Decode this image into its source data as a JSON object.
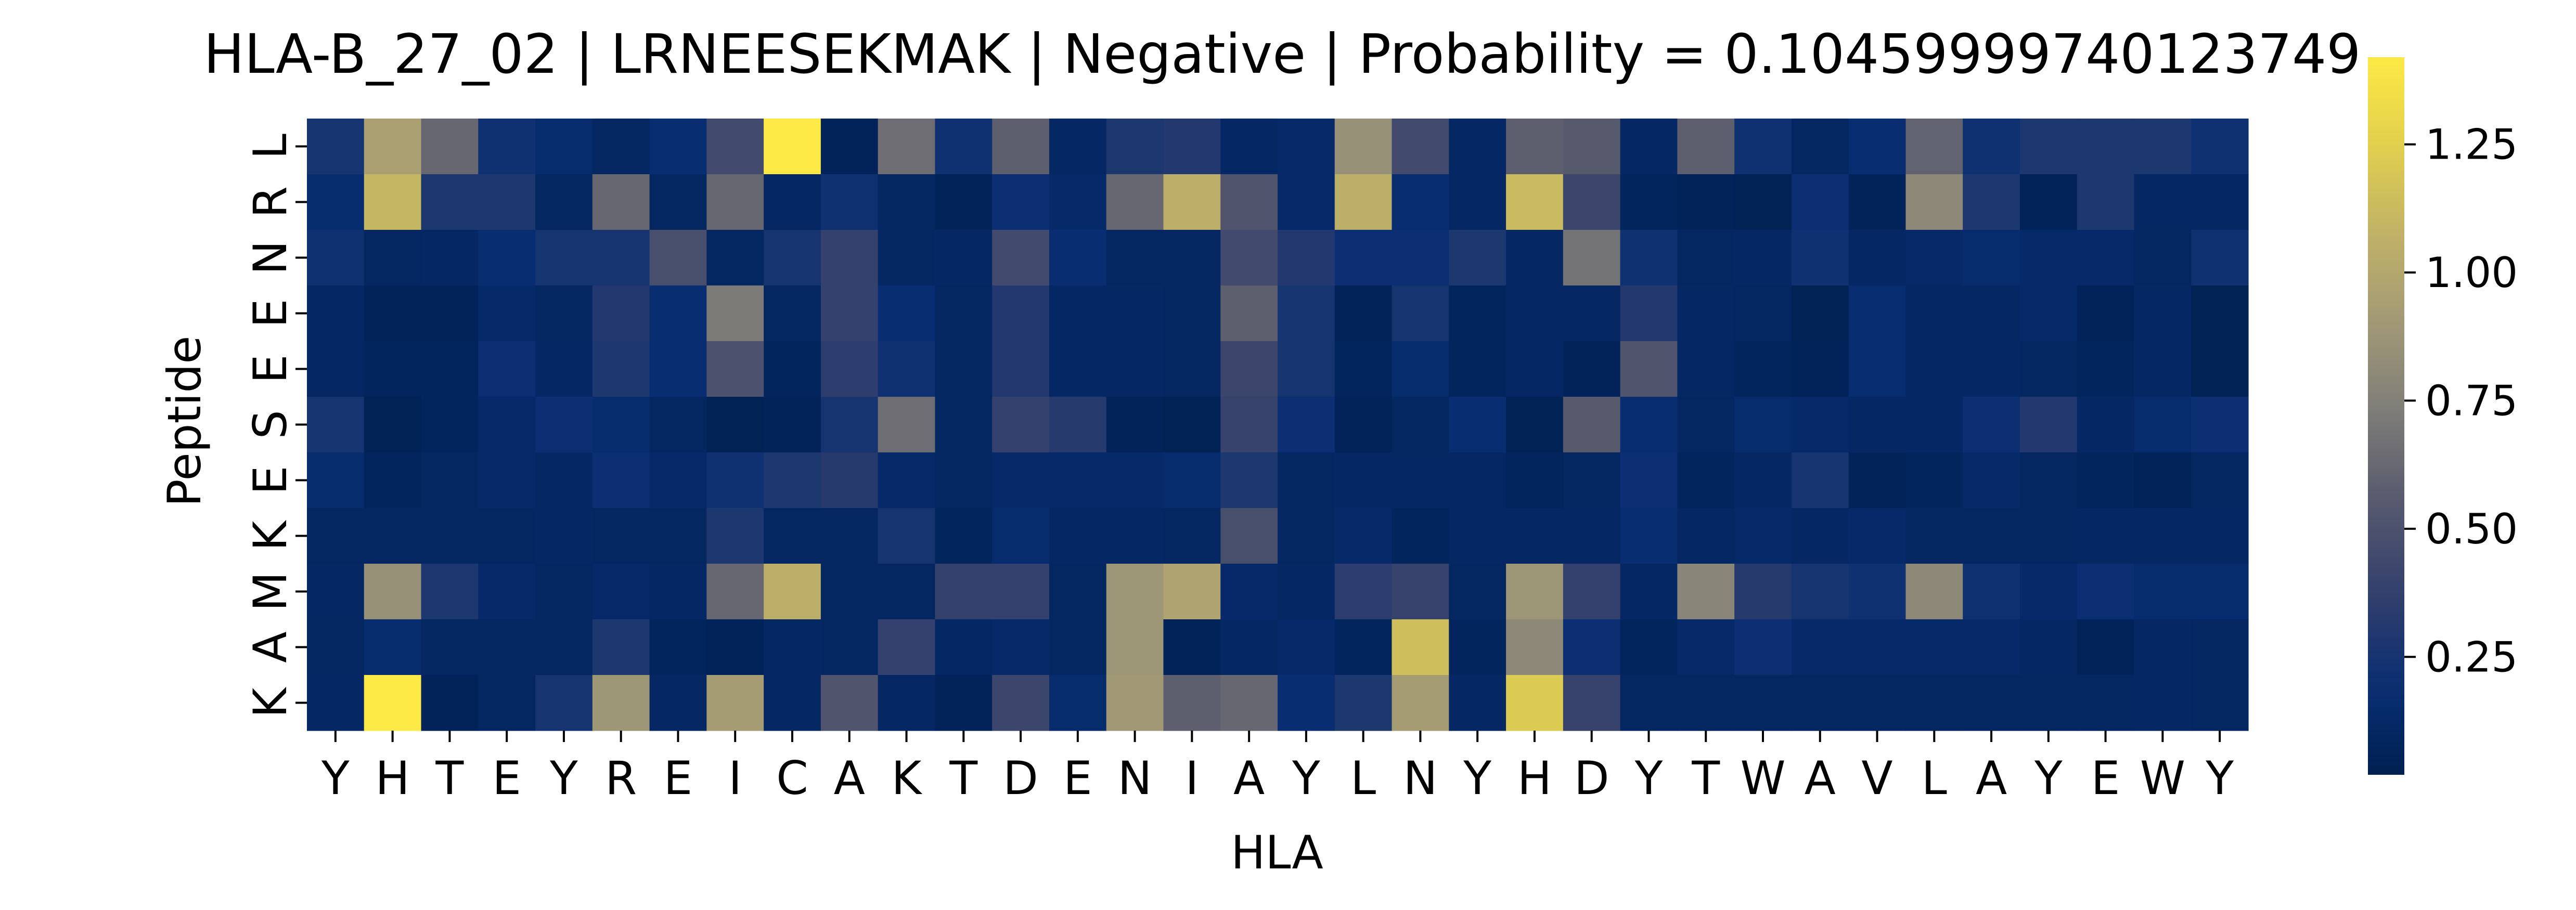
{
  "chart_data": {
    "type": "heatmap",
    "title": "HLA-B_27_02 | LRNEESEKMAK | Negative | Probability = 0.10459999740123749",
    "xlabel": "HLA",
    "ylabel": "Peptide",
    "x_categories": [
      "Y",
      "H",
      "T",
      "E",
      "Y",
      "R",
      "E",
      "I",
      "C",
      "A",
      "K",
      "T",
      "D",
      "E",
      "N",
      "I",
      "A",
      "Y",
      "L",
      "N",
      "Y",
      "H",
      "D",
      "Y",
      "T",
      "W",
      "A",
      "V",
      "L",
      "A",
      "Y",
      "E",
      "W",
      "Y"
    ],
    "y_categories": [
      "L",
      "R",
      "N",
      "E",
      "E",
      "S",
      "E",
      "K",
      "M",
      "A",
      "K"
    ],
    "colormap": "cividis",
    "vmin": 0.02,
    "vmax": 1.42,
    "colorbar_ticks": [
      0.25,
      0.5,
      0.75,
      1.0,
      1.25
    ],
    "colorbar_tick_labels": [
      "0.25",
      "0.50",
      "0.75",
      "1.00",
      "1.25"
    ],
    "values": [
      [
        0.25,
        0.95,
        0.62,
        0.22,
        0.16,
        0.1,
        0.18,
        0.45,
        1.42,
        0.06,
        0.65,
        0.22,
        0.58,
        0.12,
        0.28,
        0.3,
        0.12,
        0.14,
        0.85,
        0.45,
        0.12,
        0.58,
        0.55,
        0.12,
        0.58,
        0.22,
        0.1,
        0.18,
        0.6,
        0.22,
        0.28,
        0.28,
        0.28,
        0.22
      ],
      [
        0.16,
        1.1,
        0.28,
        0.28,
        0.1,
        0.62,
        0.1,
        0.62,
        0.12,
        0.22,
        0.1,
        0.06,
        0.2,
        0.14,
        0.62,
        1.05,
        0.52,
        0.14,
        1.05,
        0.18,
        0.12,
        1.12,
        0.42,
        0.08,
        0.06,
        0.04,
        0.2,
        0.06,
        0.8,
        0.28,
        0.06,
        0.28,
        0.12,
        0.12
      ],
      [
        0.22,
        0.1,
        0.12,
        0.18,
        0.25,
        0.25,
        0.48,
        0.1,
        0.25,
        0.38,
        0.1,
        0.12,
        0.45,
        0.18,
        0.1,
        0.1,
        0.45,
        0.3,
        0.2,
        0.2,
        0.28,
        0.12,
        0.68,
        0.22,
        0.1,
        0.12,
        0.22,
        0.12,
        0.14,
        0.16,
        0.14,
        0.14,
        0.1,
        0.22
      ],
      [
        0.12,
        0.06,
        0.06,
        0.14,
        0.1,
        0.3,
        0.18,
        0.72,
        0.1,
        0.38,
        0.18,
        0.1,
        0.3,
        0.12,
        0.12,
        0.1,
        0.58,
        0.25,
        0.06,
        0.25,
        0.08,
        0.12,
        0.12,
        0.3,
        0.12,
        0.1,
        0.04,
        0.18,
        0.12,
        0.12,
        0.14,
        0.06,
        0.12,
        0.04
      ],
      [
        0.12,
        0.08,
        0.08,
        0.2,
        0.12,
        0.28,
        0.18,
        0.5,
        0.08,
        0.35,
        0.22,
        0.1,
        0.3,
        0.12,
        0.12,
        0.1,
        0.42,
        0.25,
        0.08,
        0.16,
        0.08,
        0.12,
        0.06,
        0.52,
        0.12,
        0.08,
        0.06,
        0.18,
        0.12,
        0.12,
        0.1,
        0.08,
        0.12,
        0.04
      ],
      [
        0.25,
        0.04,
        0.08,
        0.14,
        0.2,
        0.16,
        0.1,
        0.04,
        0.06,
        0.25,
        0.65,
        0.1,
        0.38,
        0.32,
        0.06,
        0.04,
        0.4,
        0.2,
        0.06,
        0.1,
        0.18,
        0.04,
        0.55,
        0.18,
        0.1,
        0.16,
        0.14,
        0.12,
        0.12,
        0.2,
        0.3,
        0.12,
        0.16,
        0.2
      ],
      [
        0.16,
        0.08,
        0.1,
        0.14,
        0.12,
        0.2,
        0.14,
        0.22,
        0.28,
        0.32,
        0.14,
        0.1,
        0.14,
        0.14,
        0.14,
        0.16,
        0.28,
        0.1,
        0.12,
        0.12,
        0.12,
        0.08,
        0.1,
        0.2,
        0.08,
        0.12,
        0.25,
        0.06,
        0.08,
        0.14,
        0.1,
        0.08,
        0.06,
        0.1
      ],
      [
        0.1,
        0.1,
        0.1,
        0.1,
        0.12,
        0.1,
        0.1,
        0.28,
        0.1,
        0.1,
        0.25,
        0.08,
        0.16,
        0.12,
        0.12,
        0.1,
        0.48,
        0.1,
        0.14,
        0.08,
        0.12,
        0.12,
        0.12,
        0.18,
        0.12,
        0.14,
        0.12,
        0.14,
        0.1,
        0.1,
        0.1,
        0.12,
        0.12,
        0.12
      ],
      [
        0.12,
        0.85,
        0.28,
        0.14,
        0.1,
        0.14,
        0.12,
        0.62,
        1.05,
        0.1,
        0.1,
        0.38,
        0.38,
        0.1,
        0.88,
        0.98,
        0.14,
        0.12,
        0.35,
        0.4,
        0.1,
        0.88,
        0.38,
        0.12,
        0.78,
        0.32,
        0.25,
        0.22,
        0.8,
        0.22,
        0.14,
        0.2,
        0.16,
        0.16
      ],
      [
        0.1,
        0.16,
        0.1,
        0.1,
        0.1,
        0.28,
        0.08,
        0.06,
        0.12,
        0.1,
        0.38,
        0.12,
        0.14,
        0.1,
        0.88,
        0.06,
        0.12,
        0.14,
        0.08,
        1.15,
        0.08,
        0.8,
        0.2,
        0.08,
        0.14,
        0.2,
        0.14,
        0.14,
        0.14,
        0.14,
        0.12,
        0.06,
        0.12,
        0.1
      ],
      [
        0.12,
        1.42,
        0.06,
        0.1,
        0.25,
        0.88,
        0.12,
        0.92,
        0.12,
        0.52,
        0.12,
        0.06,
        0.42,
        0.16,
        0.9,
        0.58,
        0.62,
        0.18,
        0.28,
        0.92,
        0.12,
        1.22,
        0.4,
        0.1,
        0.1,
        0.1,
        0.1,
        0.1,
        0.1,
        0.1,
        0.1,
        0.1,
        0.12,
        0.1
      ]
    ]
  }
}
